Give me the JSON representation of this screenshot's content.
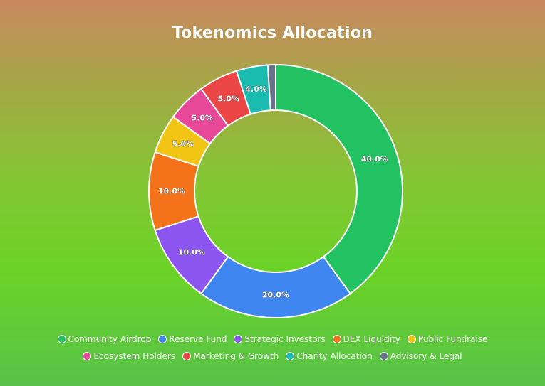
{
  "chart_data": {
    "type": "pie",
    "title": "Tokenomics Allocation",
    "donut": true,
    "legend_position": "bottom",
    "slices": [
      {
        "label": "Community Airdrop",
        "value": 40.0,
        "display": "40.0%",
        "color": "#22c162"
      },
      {
        "label": "Reserve Fund",
        "value": 20.0,
        "display": "20.0%",
        "color": "#3f86f1"
      },
      {
        "label": "Strategic Investors",
        "value": 10.0,
        "display": "10.0%",
        "color": "#8c55ef"
      },
      {
        "label": "DEX Liquidity",
        "value": 10.0,
        "display": "10.0%",
        "color": "#f4721a"
      },
      {
        "label": "Public Fundraise",
        "value": 5.0,
        "display": "5.0%",
        "color": "#f2c414"
      },
      {
        "label": "Ecosystem Holders",
        "value": 5.0,
        "display": "5.0%",
        "color": "#e74897"
      },
      {
        "label": "Marketing & Growth",
        "value": 5.0,
        "display": "5.0%",
        "color": "#ec4545"
      },
      {
        "label": "Charity Allocation",
        "value": 4.0,
        "display": "4.0%",
        "color": "#1bbcb0"
      },
      {
        "label": "Advisory & Legal",
        "value": 1.0,
        "display": "",
        "color": "#657289"
      }
    ]
  }
}
